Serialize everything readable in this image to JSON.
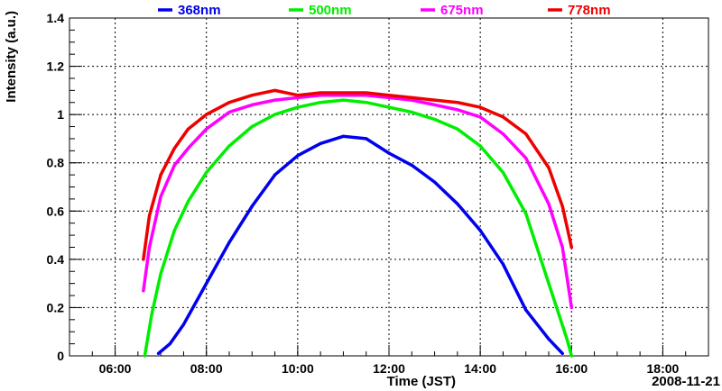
{
  "chart_data": {
    "type": "line",
    "title": "",
    "xlabel": "Time (JST)",
    "ylabel": "Intensity (a.u.)",
    "date_label": "2008-11-21",
    "xlim": [
      5.0,
      19.0
    ],
    "ylim": [
      0,
      1.4
    ],
    "x_ticks": [
      {
        "value": 6,
        "label": "06:00"
      },
      {
        "value": 8,
        "label": "08:00"
      },
      {
        "value": 10,
        "label": "10:00"
      },
      {
        "value": 12,
        "label": "12:00"
      },
      {
        "value": 14,
        "label": "14:00"
      },
      {
        "value": 16,
        "label": "16:00"
      },
      {
        "value": 18,
        "label": "18:00"
      }
    ],
    "y_ticks": [
      {
        "value": 0,
        "label": "0"
      },
      {
        "value": 0.2,
        "label": "0.2"
      },
      {
        "value": 0.4,
        "label": "0.4"
      },
      {
        "value": 0.6,
        "label": "0.6"
      },
      {
        "value": 0.8,
        "label": "0.8"
      },
      {
        "value": 1.0,
        "label": "1"
      },
      {
        "value": 1.2,
        "label": "1.2"
      },
      {
        "value": 1.4,
        "label": "1.4"
      }
    ],
    "grid": true,
    "legend_position": "top",
    "series": [
      {
        "name": "368nm",
        "color": "#0000ee",
        "x": [
          6.95,
          7.2,
          7.5,
          8.0,
          8.5,
          9.0,
          9.5,
          10.0,
          10.5,
          11.0,
          11.5,
          12.0,
          12.5,
          13.0,
          13.5,
          14.0,
          14.5,
          15.0,
          15.5,
          15.8
        ],
        "y": [
          0.01,
          0.05,
          0.13,
          0.3,
          0.47,
          0.62,
          0.75,
          0.83,
          0.88,
          0.91,
          0.9,
          0.84,
          0.79,
          0.72,
          0.63,
          0.52,
          0.38,
          0.19,
          0.07,
          0.01
        ]
      },
      {
        "name": "500nm",
        "color": "#00ee00",
        "x": [
          6.65,
          6.8,
          7.0,
          7.3,
          7.6,
          8.0,
          8.5,
          9.0,
          9.5,
          10.0,
          10.5,
          11.0,
          11.5,
          12.0,
          12.5,
          13.0,
          13.5,
          14.0,
          14.5,
          15.0,
          15.5,
          15.9,
          16.0
        ],
        "y": [
          0.0,
          0.17,
          0.34,
          0.52,
          0.64,
          0.76,
          0.87,
          0.95,
          1.0,
          1.03,
          1.05,
          1.06,
          1.05,
          1.03,
          1.01,
          0.98,
          0.94,
          0.87,
          0.76,
          0.59,
          0.3,
          0.07,
          0.0
        ]
      },
      {
        "name": "675nm",
        "color": "#ff00ff",
        "x": [
          6.62,
          6.75,
          7.0,
          7.3,
          7.6,
          8.0,
          8.5,
          9.0,
          9.5,
          10.0,
          10.5,
          11.0,
          11.5,
          12.0,
          12.5,
          13.0,
          13.5,
          14.0,
          14.5,
          15.0,
          15.5,
          15.8,
          16.0
        ],
        "y": [
          0.27,
          0.45,
          0.66,
          0.79,
          0.86,
          0.94,
          1.01,
          1.04,
          1.06,
          1.07,
          1.08,
          1.08,
          1.08,
          1.07,
          1.06,
          1.04,
          1.02,
          0.99,
          0.92,
          0.82,
          0.63,
          0.45,
          0.2
        ]
      },
      {
        "name": "778nm",
        "color": "#ee0000",
        "x": [
          6.62,
          6.75,
          7.0,
          7.3,
          7.6,
          8.0,
          8.5,
          9.0,
          9.5,
          10.0,
          10.5,
          11.0,
          11.5,
          12.0,
          12.5,
          13.0,
          13.5,
          14.0,
          14.5,
          15.0,
          15.5,
          15.8,
          16.0
        ],
        "y": [
          0.4,
          0.58,
          0.75,
          0.86,
          0.94,
          1.0,
          1.05,
          1.08,
          1.1,
          1.08,
          1.09,
          1.09,
          1.09,
          1.08,
          1.07,
          1.06,
          1.05,
          1.03,
          0.99,
          0.92,
          0.78,
          0.62,
          0.45
        ]
      }
    ]
  }
}
